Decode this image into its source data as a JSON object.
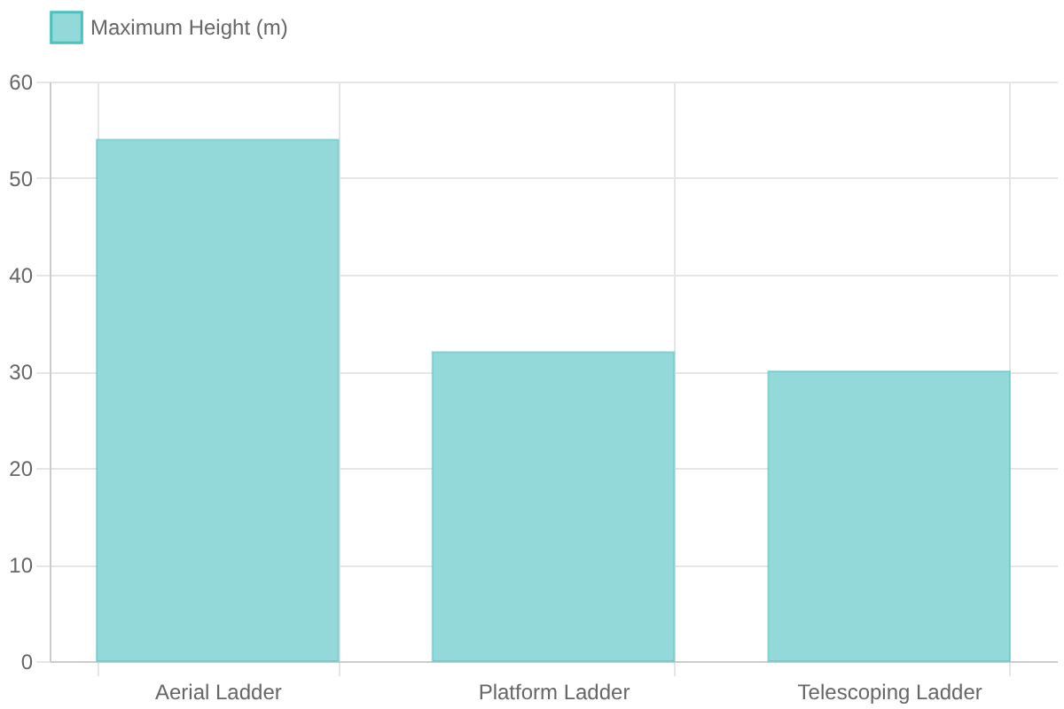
{
  "chart_data": {
    "type": "bar",
    "categories": [
      "Aerial Ladder",
      "Platform Ladder",
      "Telescoping Ladder"
    ],
    "series": [
      {
        "name": "Maximum Height (m)",
        "color": "#93d9d9",
        "values": [
          54,
          32,
          30
        ]
      }
    ],
    "ylim": [
      0,
      60
    ],
    "yticks": [
      0,
      10,
      20,
      30,
      40,
      50,
      60
    ],
    "grid": true,
    "legend": "top"
  }
}
